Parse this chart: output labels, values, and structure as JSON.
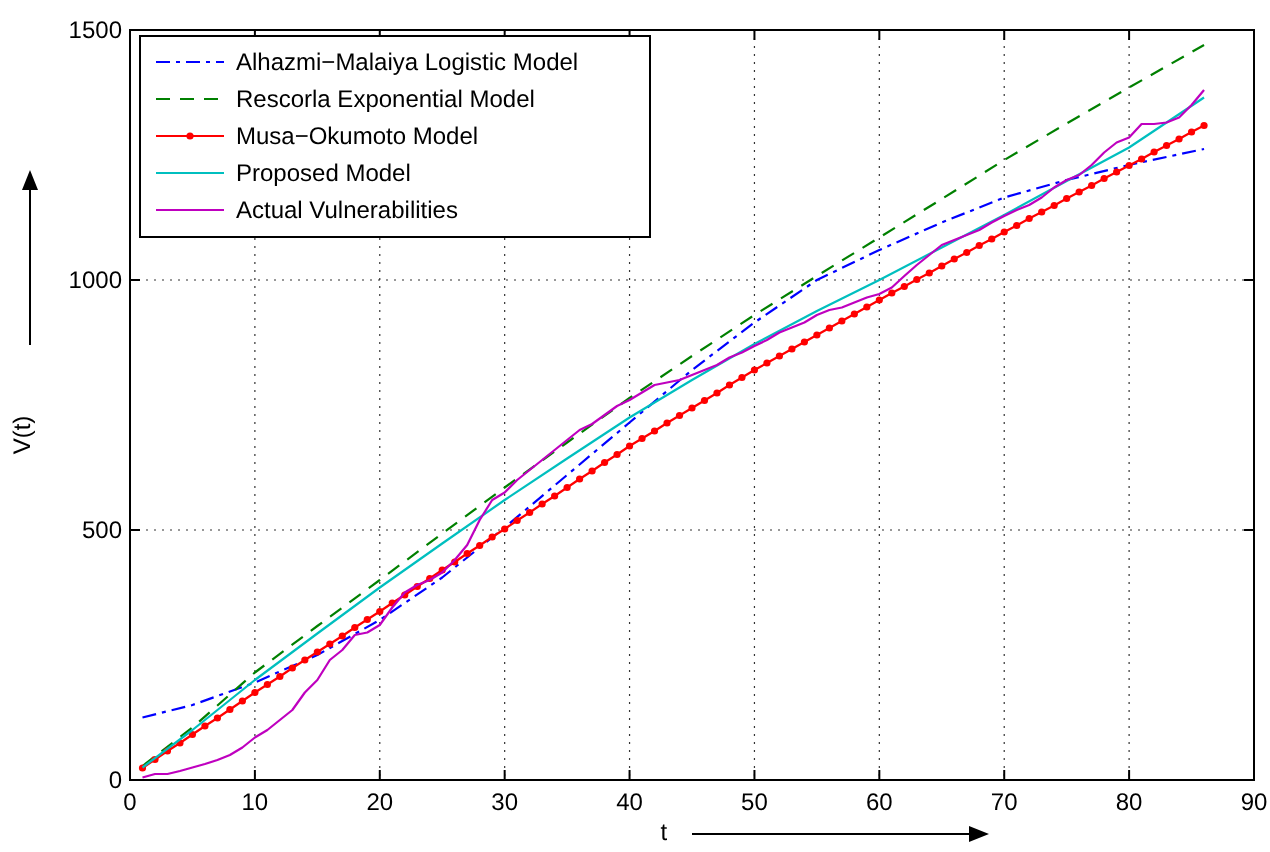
{
  "chart_data": {
    "type": "line",
    "xlabel": "t",
    "ylabel": "V(t)",
    "xlim": [
      0,
      90
    ],
    "ylim": [
      0,
      1500
    ],
    "xticks": [
      0,
      10,
      20,
      30,
      40,
      50,
      60,
      70,
      80,
      90
    ],
    "yticks": [
      0,
      500,
      1000,
      1500
    ],
    "grid": true,
    "legend": "top left",
    "series": [
      {
        "name": "Alhazmi−Malaiya Logistic Model",
        "color": "#0000ff",
        "line_style": "dashdot",
        "marker": "none",
        "x": [
          1,
          5,
          10,
          15,
          20,
          25,
          30,
          35,
          40,
          45,
          50,
          55,
          60,
          65,
          70,
          75,
          80,
          86
        ],
        "values": [
          125,
          150,
          195,
          250,
          320,
          405,
          505,
          610,
          715,
          820,
          915,
          1000,
          1060,
          1115,
          1165,
          1200,
          1230,
          1262
        ]
      },
      {
        "name": "Rescorla Exponential Model",
        "color": "#008000",
        "line_style": "dashed",
        "marker": "none",
        "x": [
          1,
          5,
          10,
          15,
          20,
          25,
          30,
          35,
          40,
          45,
          50,
          55,
          60,
          65,
          70,
          75,
          80,
          86
        ],
        "values": [
          28,
          105,
          215,
          308,
          400,
          493,
          585,
          675,
          764,
          848,
          930,
          1008,
          1085,
          1162,
          1240,
          1313,
          1385,
          1470
        ]
      },
      {
        "name": "Musa−Okumoto Model",
        "color": "#ff0000",
        "line_style": "solid",
        "marker": "circle",
        "x": [
          1,
          2,
          3,
          4,
          5,
          6,
          7,
          8,
          9,
          10,
          11,
          12,
          13,
          14,
          15,
          16,
          17,
          18,
          19,
          20,
          21,
          22,
          23,
          24,
          25,
          26,
          27,
          28,
          29,
          30,
          31,
          32,
          33,
          34,
          35,
          36,
          37,
          38,
          39,
          40,
          41,
          42,
          43,
          44,
          45,
          46,
          47,
          48,
          49,
          50,
          51,
          52,
          53,
          54,
          55,
          56,
          57,
          58,
          59,
          60,
          61,
          62,
          63,
          64,
          65,
          66,
          67,
          68,
          69,
          70,
          71,
          72,
          73,
          74,
          75,
          76,
          77,
          78,
          79,
          80,
          81,
          82,
          83,
          84,
          85,
          86
        ],
        "values": [
          24,
          41,
          58,
          74,
          91,
          108,
          124,
          141,
          158,
          175,
          191,
          207,
          224,
          240,
          256,
          272,
          288,
          305,
          321,
          337,
          354,
          370,
          387,
          403,
          420,
          436,
          453,
          469,
          486,
          502,
          519,
          535,
          552,
          568,
          585,
          602,
          618,
          635,
          651,
          668,
          683,
          698,
          714,
          729,
          744,
          759,
          774,
          790,
          805,
          820,
          834,
          848,
          862,
          876,
          890,
          904,
          918,
          932,
          946,
          960,
          974,
          987,
          1001,
          1014,
          1028,
          1042,
          1055,
          1069,
          1082,
          1096,
          1109,
          1123,
          1136,
          1149,
          1163,
          1176,
          1189,
          1203,
          1216,
          1229,
          1242,
          1256,
          1269,
          1282,
          1296,
          1309
        ]
      },
      {
        "name": "Proposed Model",
        "color": "#00bfbf",
        "line_style": "solid",
        "marker": "none",
        "x": [
          1,
          5,
          10,
          15,
          20,
          25,
          30,
          35,
          40,
          45,
          50,
          55,
          60,
          65,
          70,
          75,
          80,
          86
        ],
        "values": [
          25,
          100,
          200,
          293,
          385,
          473,
          560,
          643,
          725,
          800,
          872,
          938,
          1000,
          1065,
          1130,
          1198,
          1265,
          1365
        ]
      },
      {
        "name": "Actual Vulnerabilities",
        "color": "#bf00bf",
        "line_style": "solid",
        "marker": "none",
        "x": [
          1,
          2,
          3,
          4,
          5,
          6,
          7,
          8,
          9,
          10,
          11,
          12,
          13,
          14,
          15,
          16,
          17,
          18,
          19,
          20,
          21,
          22,
          23,
          24,
          25,
          26,
          27,
          28,
          29,
          30,
          31,
          32,
          33,
          34,
          35,
          36,
          37,
          38,
          39,
          40,
          41,
          42,
          43,
          44,
          45,
          46,
          47,
          48,
          49,
          50,
          51,
          52,
          53,
          54,
          55,
          56,
          57,
          58,
          59,
          60,
          61,
          62,
          63,
          64,
          65,
          66,
          67,
          68,
          69,
          70,
          71,
          72,
          73,
          74,
          75,
          76,
          77,
          78,
          79,
          80,
          81,
          82,
          83,
          84,
          85,
          86
        ],
        "values": [
          5,
          12,
          12,
          18,
          25,
          32,
          40,
          50,
          65,
          85,
          100,
          120,
          140,
          175,
          200,
          240,
          260,
          290,
          295,
          310,
          345,
          375,
          390,
          400,
          415,
          440,
          470,
          520,
          560,
          575,
          600,
          620,
          640,
          660,
          680,
          700,
          712,
          730,
          748,
          760,
          775,
          790,
          795,
          800,
          810,
          820,
          830,
          845,
          855,
          868,
          880,
          895,
          905,
          915,
          930,
          940,
          945,
          955,
          965,
          972,
          985,
          1008,
          1030,
          1050,
          1070,
          1080,
          1090,
          1100,
          1115,
          1128,
          1140,
          1150,
          1165,
          1185,
          1200,
          1210,
          1230,
          1255,
          1275,
          1285,
          1312,
          1312,
          1315,
          1325,
          1350,
          1380
        ]
      }
    ]
  }
}
